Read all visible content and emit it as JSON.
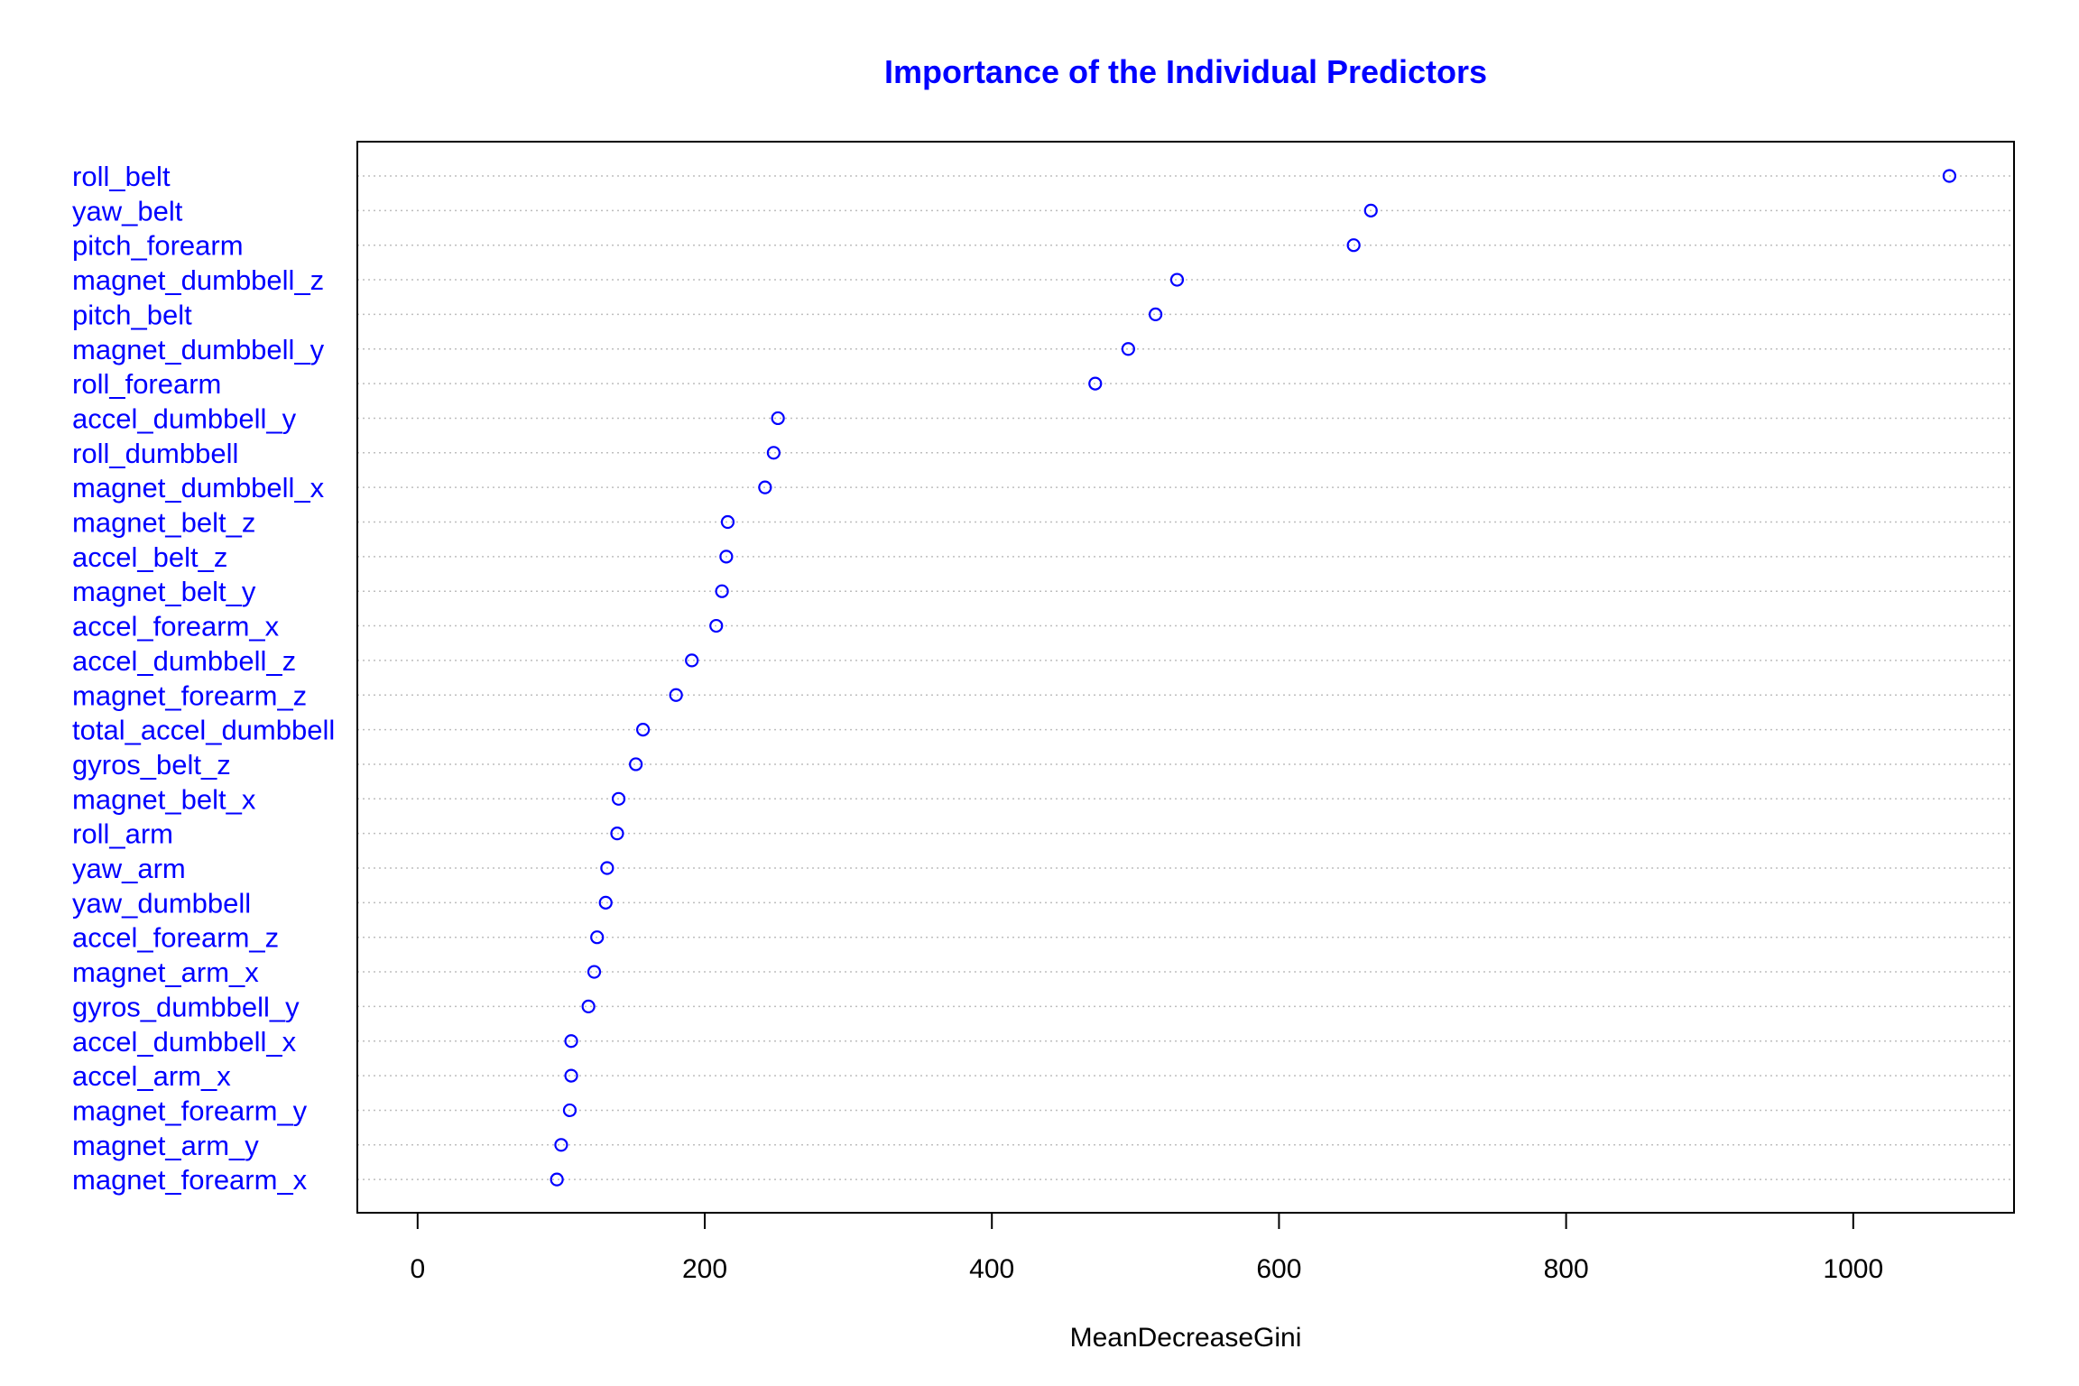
{
  "chart_data": {
    "type": "scatter",
    "title": "Importance of the Individual Predictors",
    "xlabel": "MeanDecreaseGini",
    "ylabel": "",
    "xlim": [
      -42,
      1112
    ],
    "xticks": [
      0,
      200,
      400,
      600,
      800,
      1000
    ],
    "grid": "dotted horizontal",
    "colors": {
      "accent": "#0000ff",
      "axis": "#000000",
      "grid": "#bebebe"
    },
    "categories": [
      "roll_belt",
      "yaw_belt",
      "pitch_forearm",
      "magnet_dumbbell_z",
      "pitch_belt",
      "magnet_dumbbell_y",
      "roll_forearm",
      "accel_dumbbell_y",
      "roll_dumbbell",
      "magnet_dumbbell_x",
      "magnet_belt_z",
      "accel_belt_z",
      "magnet_belt_y",
      "accel_forearm_x",
      "accel_dumbbell_z",
      "magnet_forearm_z",
      "total_accel_dumbbell",
      "gyros_belt_z",
      "magnet_belt_x",
      "roll_arm",
      "yaw_arm",
      "yaw_dumbbell",
      "accel_forearm_z",
      "magnet_arm_x",
      "gyros_dumbbell_y",
      "accel_dumbbell_x",
      "accel_arm_x",
      "magnet_forearm_y",
      "magnet_arm_y",
      "magnet_forearm_x"
    ],
    "values": [
      1067,
      664,
      652,
      529,
      514,
      495,
      472,
      251,
      248,
      242,
      216,
      215,
      212,
      208,
      191,
      180,
      157,
      152,
      140,
      139,
      132,
      131,
      125,
      123,
      119,
      107,
      107,
      106,
      100,
      97
    ]
  }
}
